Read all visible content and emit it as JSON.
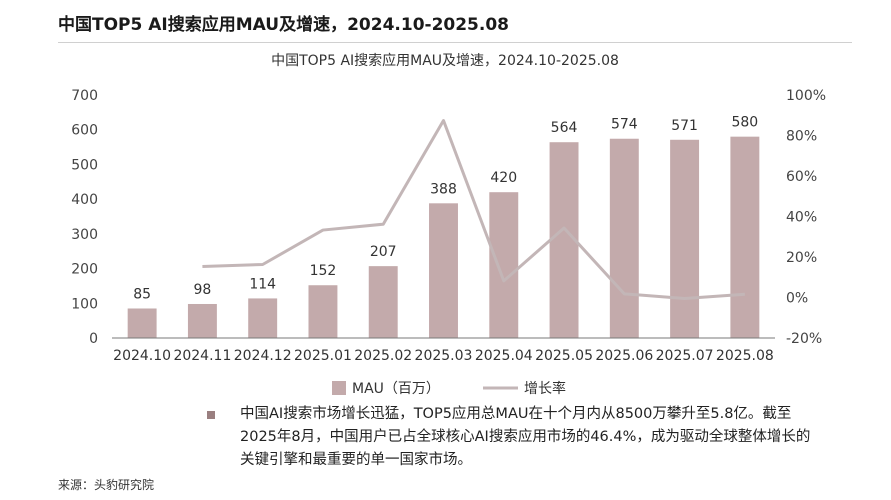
{
  "header": {
    "title": "中国TOP5 AI搜索应用MAU及增速，2024.10-2025.08"
  },
  "chart_data": {
    "type": "bar",
    "title": "中国TOP5 AI搜索应用MAU及增速，2024.10-2025.08",
    "categories": [
      "2024.10",
      "2024.11",
      "2024.12",
      "2025.01",
      "2025.02",
      "2025.03",
      "2025.04",
      "2025.05",
      "2025.06",
      "2025.07",
      "2025.08"
    ],
    "series": [
      {
        "name": "MAU（百万）",
        "type": "bar",
        "axis": "left",
        "values": [
          85,
          98,
          114,
          152,
          207,
          388,
          420,
          564,
          574,
          571,
          580
        ],
        "color": "#c3aaab"
      },
      {
        "name": "增长率",
        "type": "line",
        "axis": "right",
        "values": [
          null,
          15.3,
          16.3,
          33.3,
          36.2,
          87.4,
          8.2,
          34.3,
          1.8,
          -0.5,
          1.6
        ],
        "color": "#c3b6b7"
      }
    ],
    "y_left": {
      "ylim": [
        0,
        700
      ],
      "ticks": [
        "0",
        "100",
        "200",
        "300",
        "400",
        "500",
        "600",
        "700"
      ]
    },
    "y_right": {
      "ylim": [
        -20,
        100
      ],
      "ticks": [
        "-20%",
        "0%",
        "20%",
        "40%",
        "60%",
        "80%",
        "100%"
      ]
    },
    "grid": false,
    "legend_position": "bottom"
  },
  "note": {
    "text": "中国AI搜索市场增长迅猛，TOP5应用总MAU在十个月内从8500万攀升至5.8亿。截至2025年8月，中国用户已占全球核心AI搜索应用市场的46.4%，成为驱动全球整体增长的关键引擎和最重要的单一国家市场。"
  },
  "source": {
    "text": "来源：头豹研究院"
  }
}
